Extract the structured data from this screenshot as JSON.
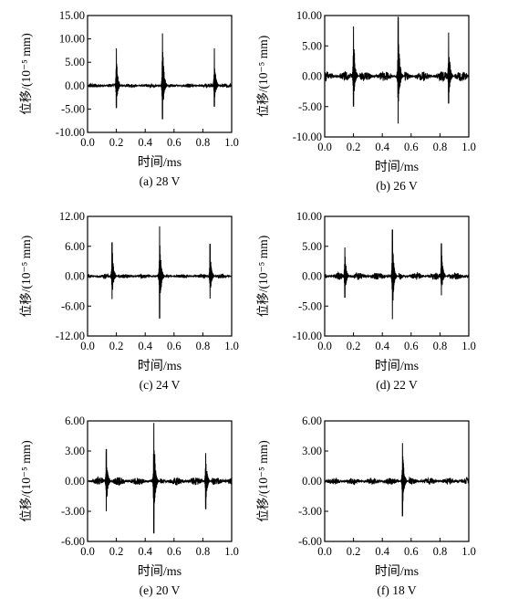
{
  "chart_data": [
    {
      "type": "line",
      "caption": "(a) 28 V",
      "xlabel": "时间/ms",
      "ylabel": "位移/(10⁻⁵ mm)",
      "xlim": [
        0.0,
        1.0
      ],
      "ylim": [
        -10.0,
        15.0
      ],
      "xticks": [
        "0.0",
        "0.2",
        "0.4",
        "0.6",
        "0.8",
        "1.0"
      ],
      "yticks": [
        "15.00",
        "10.00",
        "5.00",
        "0.00",
        "-5.00",
        "-10.00"
      ],
      "noise": 0.4,
      "series": [
        {
          "peaks": [
            {
              "x": 0.2,
              "max": 8.0,
              "min": -4.8
            },
            {
              "x": 0.52,
              "max": 11.2,
              "min": -7.2
            },
            {
              "x": 0.88,
              "max": 8.0,
              "min": -4.5
            }
          ]
        }
      ]
    },
    {
      "type": "line",
      "caption": "(b) 26 V",
      "xlabel": "时间/ms",
      "ylabel": "位移/(10⁻⁵ mm)",
      "xlim": [
        0.0,
        1.0
      ],
      "ylim": [
        -10.0,
        10.0
      ],
      "xticks": [
        "0.0",
        "0.2",
        "0.4",
        "0.6",
        "0.8",
        "1.0"
      ],
      "yticks": [
        "10.00",
        "5.00",
        "0.00",
        "-5.00",
        "-10.00"
      ],
      "noise": 0.8,
      "series": [
        {
          "peaks": [
            {
              "x": 0.2,
              "max": 8.2,
              "min": -5.0
            },
            {
              "x": 0.51,
              "max": 9.8,
              "min": -7.8
            },
            {
              "x": 0.86,
              "max": 7.2,
              "min": -4.5
            }
          ]
        }
      ]
    },
    {
      "type": "line",
      "caption": "(c) 24 V",
      "xlabel": "时间/ms",
      "ylabel": "位移/(10⁻⁵ mm)",
      "xlim": [
        0.0,
        1.0
      ],
      "ylim": [
        -12.0,
        12.0
      ],
      "xticks": [
        "0.0",
        "0.2",
        "0.4",
        "0.6",
        "0.8",
        "1.0"
      ],
      "yticks": [
        "12.00",
        "6.00",
        "0.00",
        "-6.00",
        "-12.00"
      ],
      "noise": 0.4,
      "series": [
        {
          "peaks": [
            {
              "x": 0.17,
              "max": 6.8,
              "min": -4.6
            },
            {
              "x": 0.5,
              "max": 10.0,
              "min": -8.5
            },
            {
              "x": 0.85,
              "max": 6.5,
              "min": -4.5
            }
          ]
        }
      ]
    },
    {
      "type": "line",
      "caption": "(d) 22 V",
      "xlabel": "时间/ms",
      "ylabel": "位移/(10⁻⁵ mm)",
      "xlim": [
        0.0,
        1.0
      ],
      "ylim": [
        -10.0,
        10.0
      ],
      "xticks": [
        "0.0",
        "0.2",
        "0.4",
        "0.6",
        "0.8",
        "1.0"
      ],
      "yticks": [
        "10.00",
        "5.00",
        "0.00",
        "-5.00",
        "-10.00"
      ],
      "noise": 0.6,
      "series": [
        {
          "peaks": [
            {
              "x": 0.14,
              "max": 4.8,
              "min": -3.6
            },
            {
              "x": 0.47,
              "max": 7.8,
              "min": -7.2
            },
            {
              "x": 0.81,
              "max": 5.5,
              "min": -3.2
            }
          ]
        }
      ]
    },
    {
      "type": "line",
      "caption": "(e) 20 V",
      "xlabel": "时间/ms",
      "ylabel": "位移/(10⁻⁵ mm)",
      "xlim": [
        0.0,
        1.0
      ],
      "ylim": [
        -6.0,
        6.0
      ],
      "xticks": [
        "0.0",
        "0.2",
        "0.4",
        "0.6",
        "0.8",
        "1.0"
      ],
      "yticks": [
        "6.00",
        "3.00",
        "0.00",
        "-3.00",
        "-6.00"
      ],
      "noise": 0.4,
      "series": [
        {
          "peaks": [
            {
              "x": 0.13,
              "max": 3.2,
              "min": -3.0
            },
            {
              "x": 0.46,
              "max": 5.8,
              "min": -5.2
            },
            {
              "x": 0.82,
              "max": 2.8,
              "min": -2.8
            }
          ]
        }
      ]
    },
    {
      "type": "line",
      "caption": "(f) 18 V",
      "xlabel": "时间/ms",
      "ylabel": "位移/(10⁻⁵ mm)",
      "xlim": [
        0.0,
        1.0
      ],
      "ylim": [
        -6.0,
        6.0
      ],
      "xticks": [
        "0.0",
        "0.2",
        "0.4",
        "0.6",
        "0.8",
        "1.0"
      ],
      "yticks": [
        "6.00",
        "3.00",
        "0.00",
        "-3.00",
        "-6.00"
      ],
      "noise": 0.35,
      "series": [
        {
          "peaks": [
            {
              "x": 0.54,
              "max": 3.8,
              "min": -3.5
            }
          ]
        }
      ]
    }
  ]
}
